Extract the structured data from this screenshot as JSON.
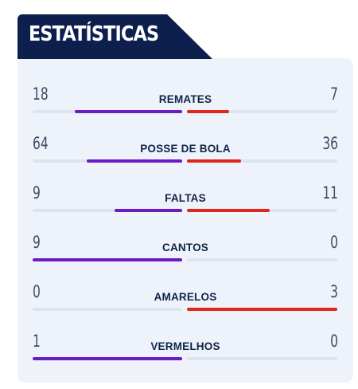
{
  "header": {
    "title": "ESTATÍSTICAS"
  },
  "colors": {
    "header_bg": "#0d1f4d",
    "panel_bg": "#eef3fb",
    "home_bar": "#6a1bc2",
    "away_bar": "#e1261c",
    "track": "#dde4ee"
  },
  "stats": [
    {
      "label": "REMATES",
      "home": "18",
      "away": "7",
      "home_fill": 0.72,
      "away_fill": 0.28
    },
    {
      "label": "POSSE DE BOLA",
      "home": "64",
      "away": "36",
      "home_fill": 0.64,
      "away_fill": 0.36
    },
    {
      "label": "FALTAS",
      "home": "9",
      "away": "11",
      "home_fill": 0.45,
      "away_fill": 0.55
    },
    {
      "label": "CANTOS",
      "home": "9",
      "away": "0",
      "home_fill": 1.0,
      "away_fill": 0.0
    },
    {
      "label": "AMARELOS",
      "home": "0",
      "away": "3",
      "home_fill": 0.0,
      "away_fill": 1.0
    },
    {
      "label": "VERMELHOS",
      "home": "1",
      "away": "0",
      "home_fill": 1.0,
      "away_fill": 0.0
    }
  ]
}
